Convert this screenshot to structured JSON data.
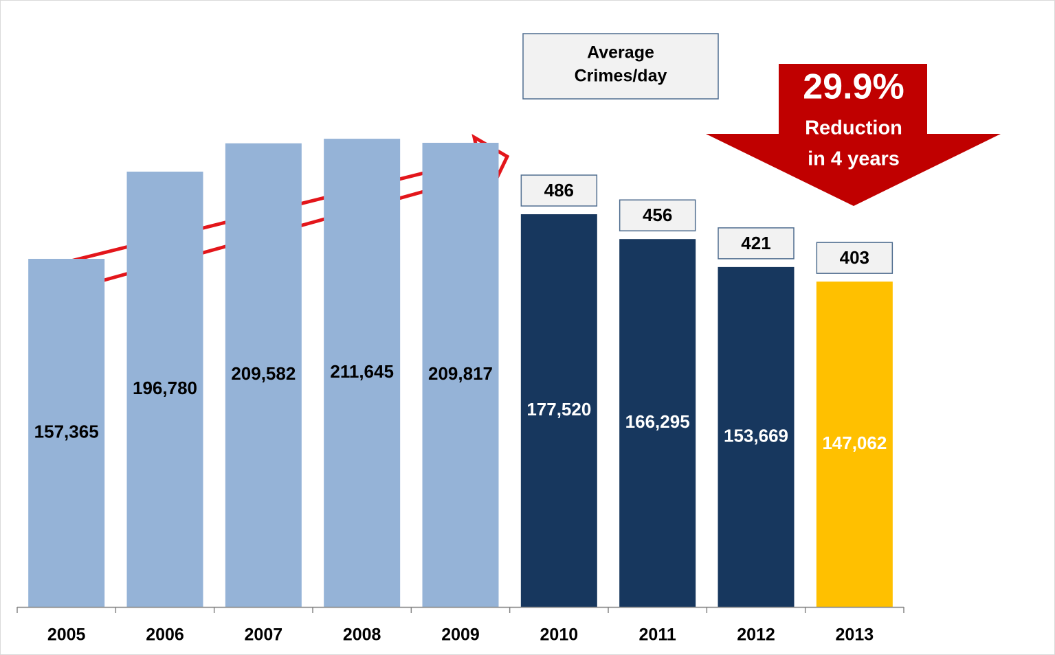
{
  "chart_data": {
    "type": "bar",
    "categories": [
      "2005",
      "2006",
      "2007",
      "2008",
      "2009",
      "2010",
      "2011",
      "2012",
      "2013"
    ],
    "values": [
      157365,
      196780,
      209582,
      211645,
      209817,
      177520,
      166295,
      153669,
      147062
    ],
    "value_labels": [
      "157,365",
      "196,780",
      "209,582",
      "211,645",
      "209,817",
      "177,520",
      "166,295",
      "153,669",
      "147,062"
    ],
    "colors": [
      "#95b3d7",
      "#95b3d7",
      "#95b3d7",
      "#95b3d7",
      "#95b3d7",
      "#17375e",
      "#17375e",
      "#17375e",
      "#ffc000"
    ],
    "value_label_colors": [
      "#000000",
      "#000000",
      "#000000",
      "#000000",
      "#000000",
      "#ffffff",
      "#ffffff",
      "#ffffff",
      "#ffffff"
    ],
    "ylim": [
      0,
      250000
    ],
    "daily_average": {
      "title": [
        "Average",
        "Crimes/day"
      ],
      "values": [
        null,
        null,
        null,
        null,
        null,
        486,
        456,
        421,
        403
      ]
    },
    "annotation": [
      "29.9%",
      "Reduction",
      "in 4 years"
    ]
  }
}
